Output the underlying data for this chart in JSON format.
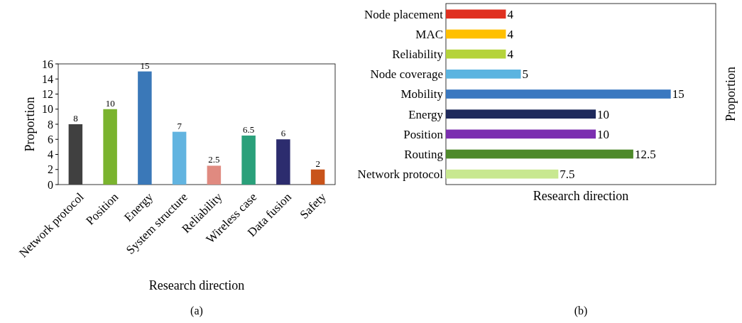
{
  "chart_data": [
    {
      "type": "bar",
      "xlabel": "Research direction",
      "ylabel": "Proportion",
      "categories": [
        "Network protocol",
        "Position",
        "Energy",
        "System structure",
        "Reliability",
        "Wireless case",
        "Data fusion",
        "Safety"
      ],
      "values": [
        8,
        10,
        15,
        7,
        2.5,
        6.5,
        6,
        2
      ],
      "colors": [
        "#404040",
        "#7ab32e",
        "#3a78b8",
        "#62b4e0",
        "#e08a80",
        "#2aa07a",
        "#2c2c6e",
        "#c8531a"
      ],
      "ylim": [
        0,
        16
      ],
      "yticks": [
        0,
        2,
        4,
        6,
        8,
        10,
        12,
        14,
        16
      ],
      "data_labels": true,
      "annotations": [
        "(a)"
      ]
    },
    {
      "type": "bar",
      "orientation": "horizontal",
      "xlabel": "Research direction",
      "ylabel": "Proportion",
      "categories": [
        "Node placement",
        "MAC",
        "Reliability",
        "Node coverage",
        "Mobility",
        "Energy",
        "Position",
        "Routing",
        "Network protocol"
      ],
      "values": [
        4,
        4,
        4,
        5,
        15,
        10,
        10,
        12.5,
        7.5
      ],
      "colors": [
        "#e03020",
        "#ffc000",
        "#b5d33a",
        "#5bb4e0",
        "#3a78c0",
        "#1f2a5c",
        "#7b2fb0",
        "#4e8a2a",
        "#c8e890"
      ],
      "data_labels": true,
      "annotations": [
        "(b)"
      ]
    }
  ]
}
